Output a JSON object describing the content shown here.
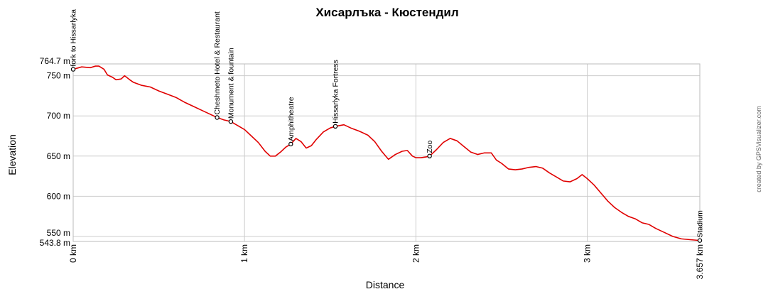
{
  "chart_data": {
    "type": "line",
    "title": "Хисарлъка - Кюстендил",
    "xlabel": "Distance",
    "ylabel": "Elevation",
    "credit": "created by GPSVisualizer.com",
    "x_range": [
      0,
      3.657
    ],
    "y_range": [
      543.8,
      764.7
    ],
    "grid": true,
    "line_color": "#e00000",
    "y_ticks": [
      {
        "value": 764.7,
        "label": "764.7 m"
      },
      {
        "value": 750,
        "label": "750 m"
      },
      {
        "value": 700,
        "label": "700 m"
      },
      {
        "value": 650,
        "label": "650 m"
      },
      {
        "value": 600,
        "label": "600 m"
      },
      {
        "value": 550,
        "label": "550 m"
      },
      {
        "value": 543.8,
        "label": "543.8 m"
      }
    ],
    "x_ticks": [
      {
        "value": 0,
        "label": "0 km"
      },
      {
        "value": 1,
        "label": "1 km"
      },
      {
        "value": 2,
        "label": "2 km"
      },
      {
        "value": 3,
        "label": "3 km"
      },
      {
        "value": 3.657,
        "label": "3.657 km"
      }
    ],
    "waypoints": [
      {
        "label": "fork to Hissarlyka",
        "x": 0.0,
        "y": 758
      },
      {
        "label": "Cheshmeto Hotel & Restaurant",
        "x": 0.84,
        "y": 698
      },
      {
        "label": "Monument & fountain",
        "x": 0.92,
        "y": 693
      },
      {
        "label": "Amphitheatre",
        "x": 1.27,
        "y": 665
      },
      {
        "label": "Hissarlyka Fortress",
        "x": 1.53,
        "y": 687
      },
      {
        "label": "Zoo",
        "x": 2.08,
        "y": 650
      },
      {
        "label": "Stadium",
        "x": 3.657,
        "y": 545
      }
    ],
    "series": [
      {
        "x": [
          0.0,
          0.05,
          0.1,
          0.13,
          0.15,
          0.18,
          0.2,
          0.23,
          0.25,
          0.28,
          0.3,
          0.33,
          0.35,
          0.4,
          0.45,
          0.5,
          0.55,
          0.6,
          0.65,
          0.7,
          0.75,
          0.8,
          0.84,
          0.88,
          0.92,
          0.96,
          1.0,
          1.04,
          1.08,
          1.12,
          1.15,
          1.18,
          1.21,
          1.24,
          1.27,
          1.3,
          1.33,
          1.36,
          1.39,
          1.42,
          1.46,
          1.5,
          1.53,
          1.58,
          1.62,
          1.67,
          1.72,
          1.76,
          1.8,
          1.84,
          1.88,
          1.92,
          1.95,
          1.98,
          2.0,
          2.03,
          2.06,
          2.08,
          2.12,
          2.16,
          2.2,
          2.24,
          2.28,
          2.32,
          2.36,
          2.4,
          2.44,
          2.47,
          2.5,
          2.54,
          2.58,
          2.62,
          2.66,
          2.7,
          2.74,
          2.78,
          2.82,
          2.86,
          2.9,
          2.94,
          2.97,
          3.0,
          3.04,
          3.08,
          3.12,
          3.16,
          3.2,
          3.24,
          3.28,
          3.32,
          3.36,
          3.4,
          3.45,
          3.5,
          3.55,
          3.6,
          3.657
        ],
        "y": [
          758,
          761,
          760,
          762,
          762,
          758,
          751,
          748,
          745,
          746,
          750,
          745,
          742,
          738,
          736,
          731,
          727,
          723,
          717,
          712,
          707,
          702,
          698,
          695,
          693,
          688,
          683,
          675,
          667,
          656,
          650,
          650,
          655,
          661,
          665,
          672,
          668,
          660,
          663,
          671,
          680,
          685,
          687,
          689,
          685,
          681,
          676,
          668,
          656,
          646,
          652,
          656,
          657,
          650,
          648,
          648,
          649,
          650,
          658,
          667,
          672,
          669,
          662,
          655,
          652,
          654,
          654,
          645,
          641,
          634,
          633,
          634,
          636,
          637,
          635,
          629,
          624,
          619,
          618,
          622,
          627,
          622,
          614,
          604,
          594,
          586,
          580,
          575,
          572,
          567,
          565,
          560,
          555,
          550,
          547,
          546,
          545
        ]
      }
    ]
  }
}
